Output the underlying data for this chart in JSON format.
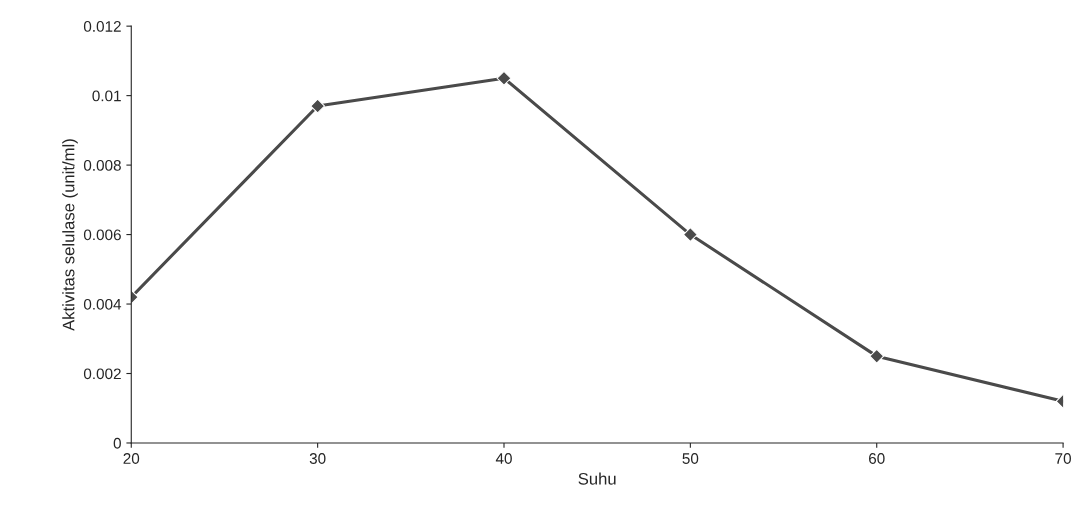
{
  "chart_data": {
    "type": "line",
    "xlabel": "Suhu",
    "ylabel": "Aktivitas selulase (unit/ml)",
    "x": [
      20,
      30,
      40,
      50,
      60,
      70
    ],
    "series": [
      {
        "color": "#4a4a4a",
        "values": [
          0.0042,
          0.0097,
          0.0105,
          0.006,
          0.0025,
          0.0012
        ]
      }
    ],
    "xlim": [
      20,
      70
    ],
    "xticks": [
      20,
      30,
      40,
      50,
      60,
      70
    ],
    "ylim": [
      0,
      0.012
    ],
    "yticks": [
      0,
      0.002,
      0.004,
      0.006,
      0.008,
      0.01,
      0.012
    ],
    "marker": "diamond",
    "line_style": "solid",
    "grid": false,
    "legend": false
  }
}
